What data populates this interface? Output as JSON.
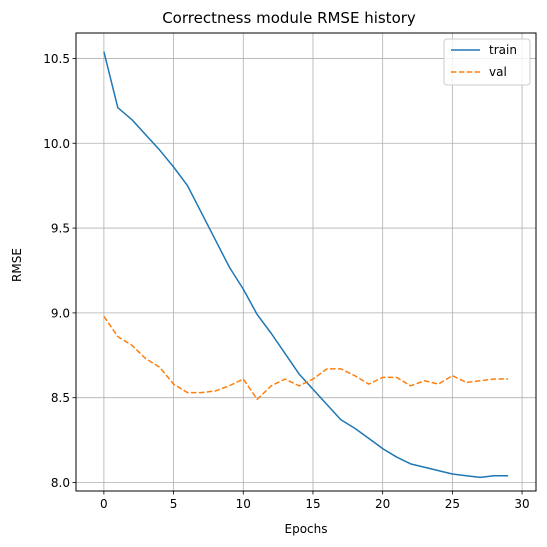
{
  "chart_data": {
    "type": "line",
    "title": "Correctness module RMSE history",
    "xlabel": "Epochs",
    "ylabel": "RMSE",
    "xlim": [
      -2,
      31
    ],
    "ylim": [
      7.95,
      10.65
    ],
    "xticks": [
      0,
      5,
      10,
      15,
      20,
      25,
      30
    ],
    "yticks": [
      8.0,
      8.5,
      9.0,
      9.5,
      10.0,
      10.5
    ],
    "ytick_labels": [
      "8.0",
      "8.5",
      "9.0",
      "9.5",
      "10.0",
      "10.5"
    ],
    "grid": true,
    "legend_position": "top-right",
    "x": [
      0,
      1,
      2,
      3,
      4,
      5,
      6,
      7,
      8,
      9,
      10,
      11,
      12,
      13,
      14,
      15,
      16,
      17,
      18,
      19,
      20,
      21,
      22,
      23,
      24,
      25,
      26,
      27,
      28,
      29
    ],
    "series": [
      {
        "name": "train",
        "color": "#1f77b4",
        "style": "solid",
        "values": [
          10.54,
          10.21,
          10.14,
          10.05,
          9.96,
          9.86,
          9.75,
          9.59,
          9.43,
          9.27,
          9.14,
          8.99,
          8.88,
          8.76,
          8.64,
          8.55,
          8.46,
          8.37,
          8.32,
          8.26,
          8.2,
          8.15,
          8.11,
          8.09,
          8.07,
          8.05,
          8.04,
          8.03,
          8.04,
          8.04
        ]
      },
      {
        "name": "val",
        "color": "#ff7f0e",
        "style": "dashed",
        "values": [
          8.98,
          8.86,
          8.81,
          8.73,
          8.68,
          8.58,
          8.53,
          8.53,
          8.54,
          8.57,
          8.61,
          8.49,
          8.57,
          8.61,
          8.57,
          8.61,
          8.67,
          8.67,
          8.63,
          8.58,
          8.62,
          8.62,
          8.57,
          8.6,
          8.58,
          8.63,
          8.59,
          8.6,
          8.61,
          8.61
        ]
      }
    ]
  }
}
